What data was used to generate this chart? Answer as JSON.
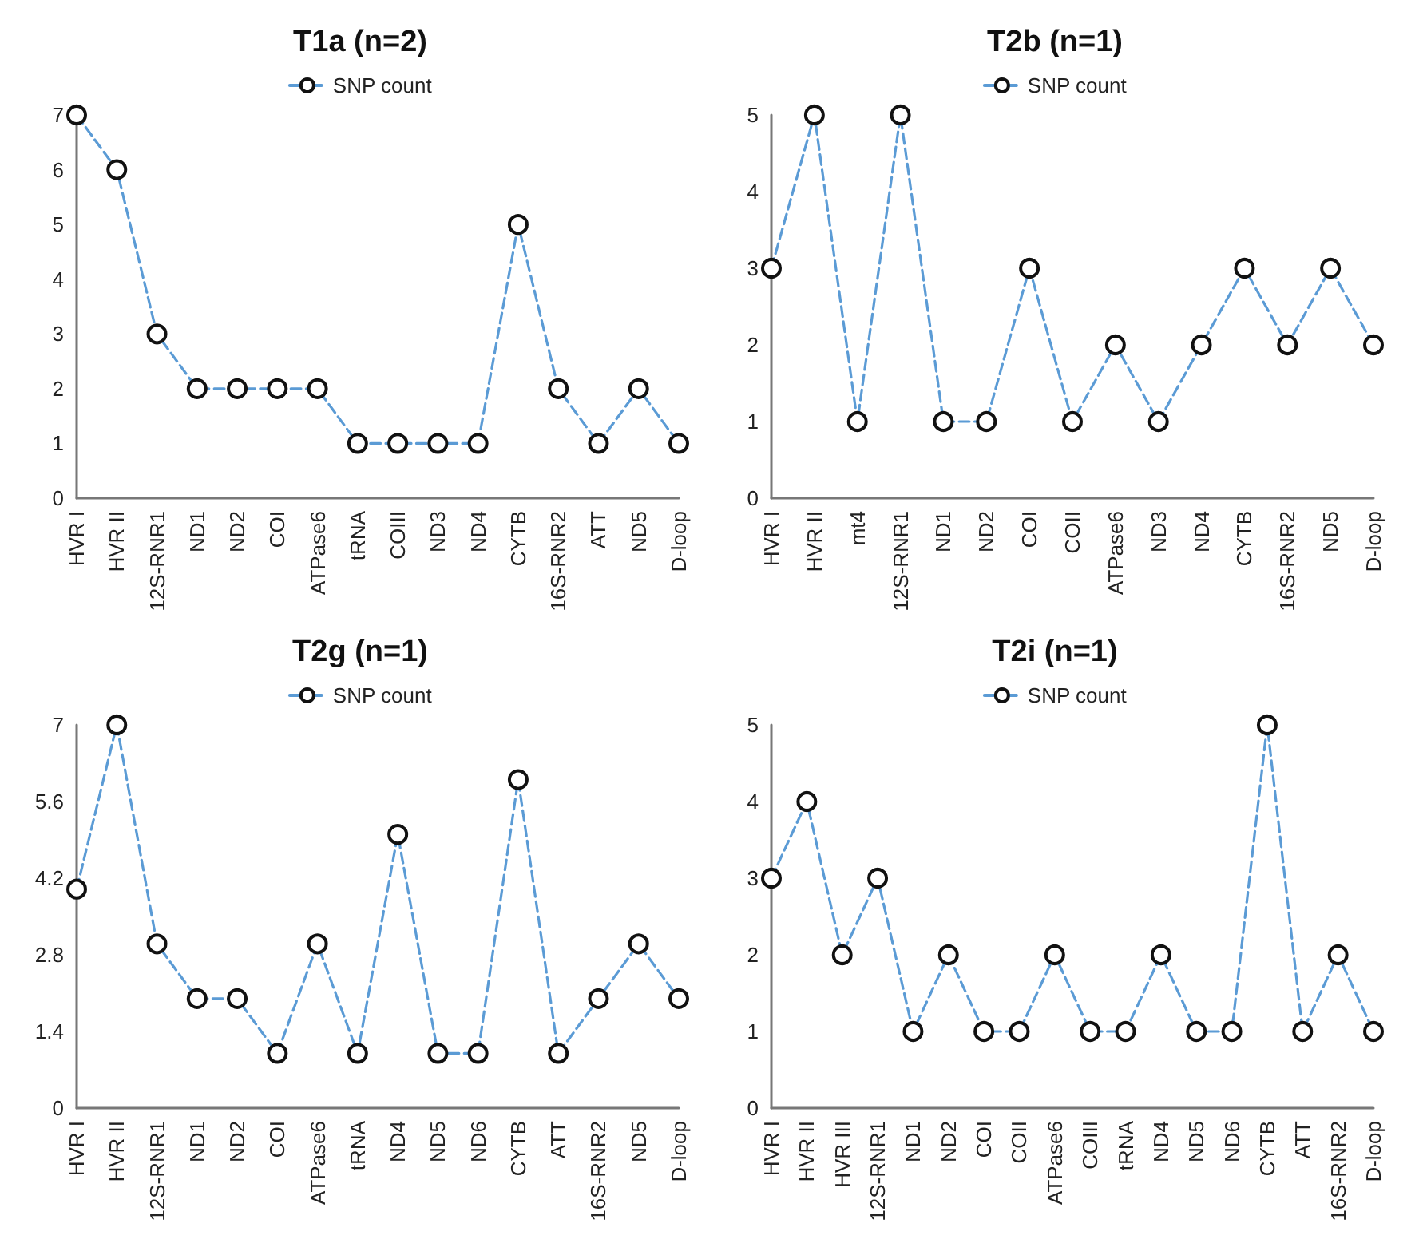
{
  "chart_data": [
    {
      "type": "line",
      "title": "T1a (n=2)",
      "categories": [
        "HVR I",
        "HVR II",
        "12S-RNR1",
        "ND1",
        "ND2",
        "COI",
        "ATPase6",
        "tRNA",
        "COIII",
        "ND3",
        "ND4",
        "CYTB",
        "16S-RNR2",
        "ATT",
        "ND5",
        "D-loop"
      ],
      "series": [
        {
          "name": "SNP count",
          "color": "#5b9bd5",
          "values": [
            7,
            6,
            3,
            2,
            2,
            2,
            2,
            1,
            1,
            1,
            1,
            5,
            2,
            1,
            2,
            1
          ]
        }
      ],
      "ylim": [
        0,
        7
      ],
      "yticks": [
        0,
        1,
        2,
        3,
        4,
        5,
        6,
        7
      ],
      "grid": false,
      "legend": "top",
      "marker": "circle",
      "line_style": "dashed"
    },
    {
      "type": "line",
      "title": "T2b (n=1)",
      "categories": [
        "HVR I",
        "HVR II",
        "mt4",
        "12S-RNR1",
        "ND1",
        "ND2",
        "COI",
        "COII",
        "ATPase6",
        "ND3",
        "ND4",
        "CYTB",
        "16S-RNR2",
        "ND5",
        "D-loop"
      ],
      "series": [
        {
          "name": "SNP count",
          "color": "#5b9bd5",
          "values": [
            3,
            5,
            1,
            5,
            1,
            1,
            3,
            1,
            2,
            1,
            2,
            3,
            2,
            3,
            2
          ]
        }
      ],
      "ylim": [
        0,
        5
      ],
      "yticks": [
        0,
        1,
        2,
        3,
        4,
        5
      ],
      "grid": false,
      "legend": "top",
      "marker": "circle",
      "line_style": "dashed"
    },
    {
      "type": "line",
      "title": "T2g (n=1)",
      "categories": [
        "HVR I",
        "HVR II",
        "12S-RNR1",
        "ND1",
        "ND2",
        "COI",
        "ATPase6",
        "tRNA",
        "ND4",
        "ND5",
        "ND6",
        "CYTB",
        "ATT",
        "16S-RNR2",
        "ND5",
        "D-loop"
      ],
      "series": [
        {
          "name": "SNP count",
          "color": "#5b9bd5",
          "values": [
            4,
            7,
            3,
            2,
            2,
            1,
            3,
            1,
            5,
            1,
            1,
            6,
            1,
            2,
            3,
            2
          ]
        }
      ],
      "ylim": [
        0,
        7
      ],
      "yticks": [
        0,
        1.4,
        2.8,
        4.2,
        5.6,
        7
      ],
      "grid": false,
      "legend": "top",
      "marker": "circle",
      "line_style": "dashed"
    },
    {
      "type": "line",
      "title": "T2i (n=1)",
      "categories": [
        "HVR I",
        "HVR II",
        "HVR III",
        "12S-RNR1",
        "ND1",
        "ND2",
        "COI",
        "COII",
        "ATPase6",
        "COIII",
        "tRNA",
        "ND4",
        "ND5",
        "ND6",
        "CYTB",
        "ATT",
        "16S-RNR2",
        "D-loop"
      ],
      "series": [
        {
          "name": "SNP count",
          "color": "#5b9bd5",
          "values": [
            3,
            4,
            2,
            3,
            1,
            2,
            1,
            1,
            2,
            1,
            1,
            2,
            1,
            1,
            5,
            1,
            2,
            1
          ]
        }
      ],
      "ylim": [
        0,
        5
      ],
      "yticks": [
        0,
        1,
        2,
        3,
        4,
        5
      ],
      "grid": false,
      "legend": "top",
      "marker": "circle",
      "line_style": "dashed"
    }
  ]
}
